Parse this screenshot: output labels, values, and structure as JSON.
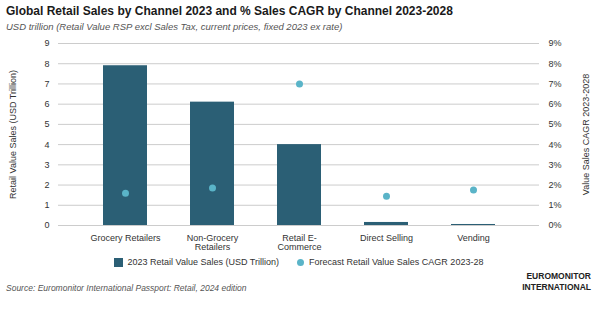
{
  "chart_data": {
    "type": "bar",
    "title": "Global Retail Sales by Channel 2023 and % Sales CAGR by Channel 2023-2028",
    "subtitle": "USD trillion (Retail Value RSP excl Sales Tax, current prices, fixed 2023 ex rate)",
    "source": "Source: Euromonitor International Passport: Retail, 2024 edition",
    "annotations": [
      "EUROMONITOR\nINTERNATIONAL"
    ],
    "categories": [
      "Grocery Retailers",
      "Non-Grocery Retailers",
      "Retail E-Commerce",
      "Direct Selling",
      "Vending"
    ],
    "series": [
      {
        "name": "2023 Retail Value Sales (USD Trillion)",
        "type": "bar",
        "color": "#2b5f75",
        "values": [
          7.9,
          6.1,
          4.0,
          0.15,
          0.05
        ]
      },
      {
        "name": "Forecast Retail Value Sales CAGR 2023-28",
        "type": "scatter",
        "marker": "circle",
        "color": "#5ab4c8",
        "axis": "y2",
        "values": [
          1.6,
          1.85,
          7.0,
          1.45,
          1.75
        ]
      }
    ],
    "ylabel": "Retail Value Sales (USD Trillion)",
    "y2label": "Value Sales CAGR 2023-2028",
    "ylim": [
      0,
      9
    ],
    "yticks": [
      0,
      1,
      2,
      3,
      4,
      5,
      6,
      7,
      8,
      9
    ],
    "y2lim": [
      0,
      9
    ],
    "y2ticks": [
      {
        "value": 0,
        "label": "0%"
      },
      {
        "value": 1,
        "label": "1%"
      },
      {
        "value": 2,
        "label": "2%"
      },
      {
        "value": 3,
        "label": "3%"
      },
      {
        "value": 4,
        "label": "4%"
      },
      {
        "value": 5,
        "label": "5%"
      },
      {
        "value": 6,
        "label": "6%"
      },
      {
        "value": 7,
        "label": "7%"
      },
      {
        "value": 8,
        "label": "8%"
      },
      {
        "value": 9,
        "label": "9%"
      }
    ],
    "grid": true,
    "legend": "bottom"
  }
}
